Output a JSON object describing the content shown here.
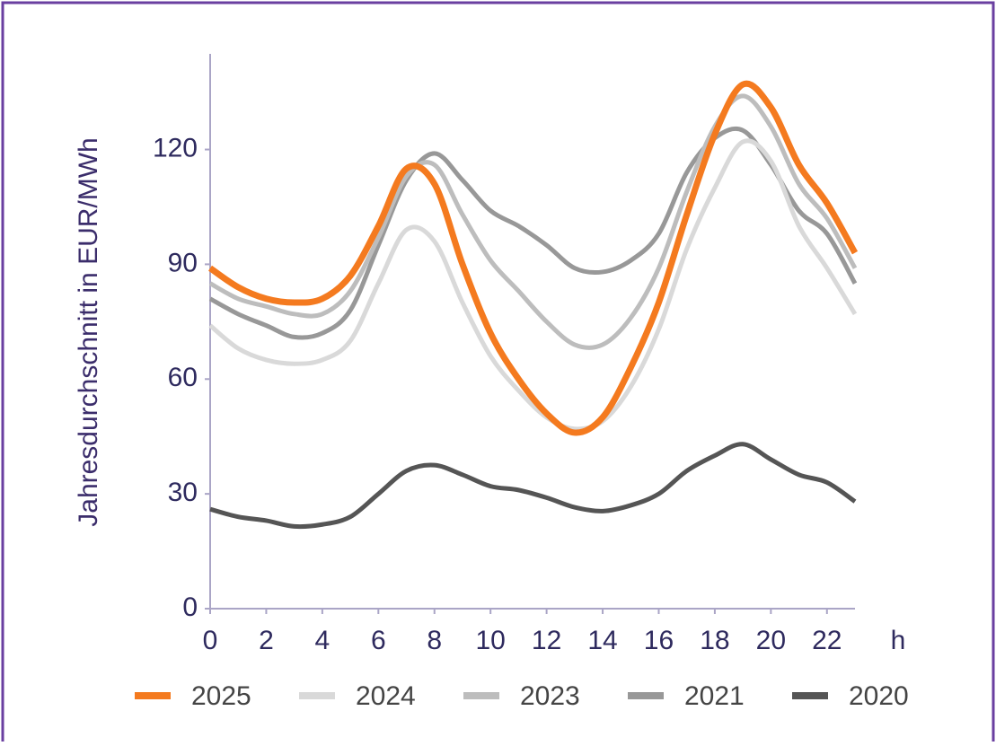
{
  "chart_data": {
    "type": "line",
    "y_label": "Jahresdurchschnitt in EUR/MWh",
    "x_label": "h",
    "x": [
      0,
      1,
      2,
      3,
      4,
      5,
      6,
      7,
      8,
      9,
      10,
      11,
      12,
      13,
      14,
      15,
      16,
      17,
      18,
      19,
      20,
      21,
      22,
      23
    ],
    "xlim": [
      0,
      23
    ],
    "xticks": [
      0,
      2,
      4,
      6,
      8,
      10,
      12,
      14,
      16,
      18,
      20,
      22
    ],
    "ylim": [
      0,
      145
    ],
    "yticks": [
      0,
      30,
      60,
      90,
      120
    ],
    "grid": false,
    "legend": "bottom",
    "series": [
      {
        "name": "2025",
        "color": "#f47a1f",
        "values": [
          89,
          84,
          81,
          80,
          81,
          87,
          100,
          115,
          111,
          90,
          72,
          60,
          51,
          46,
          50,
          63,
          80,
          103,
          124,
          137,
          131,
          116,
          106,
          93
        ]
      },
      {
        "name": "2024",
        "color": "#d9d9d9",
        "values": [
          74,
          68,
          65,
          64,
          65,
          70,
          85,
          99,
          96,
          80,
          66,
          57,
          50,
          47,
          49,
          58,
          73,
          94,
          110,
          122,
          117,
          100,
          89,
          77
        ]
      },
      {
        "name": "2023",
        "color": "#bdbdbd",
        "values": [
          85,
          81,
          79,
          77,
          77,
          83,
          97,
          113,
          116,
          103,
          91,
          83,
          75,
          69,
          69,
          76,
          89,
          109,
          126,
          134,
          126,
          111,
          102,
          89
        ]
      },
      {
        "name": "2021",
        "color": "#989898",
        "values": [
          81,
          77,
          74,
          71,
          72,
          78,
          95,
          112,
          119,
          112,
          104,
          100,
          95,
          89,
          88,
          91,
          98,
          114,
          123,
          125,
          116,
          104,
          98,
          85
        ]
      },
      {
        "name": "2020",
        "color": "#555555",
        "values": [
          26,
          24,
          23,
          21.5,
          22,
          24,
          30,
          36,
          37.5,
          35,
          32,
          31,
          29,
          26.5,
          25.5,
          27,
          30,
          36,
          40,
          43,
          39,
          35,
          33,
          28
        ]
      }
    ]
  }
}
